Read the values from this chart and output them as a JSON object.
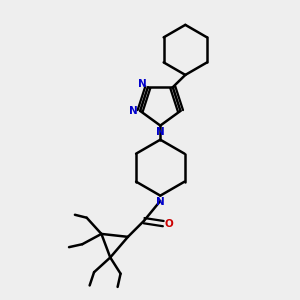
{
  "bg_color": "#eeeeee",
  "bond_color": "#000000",
  "n_color": "#0000cc",
  "o_color": "#cc0000",
  "line_width": 1.8,
  "font_size": 7.5,
  "figsize": [
    3.0,
    3.0
  ],
  "dpi": 100,
  "xlim": [
    0,
    10
  ],
  "ylim": [
    0,
    10
  ]
}
